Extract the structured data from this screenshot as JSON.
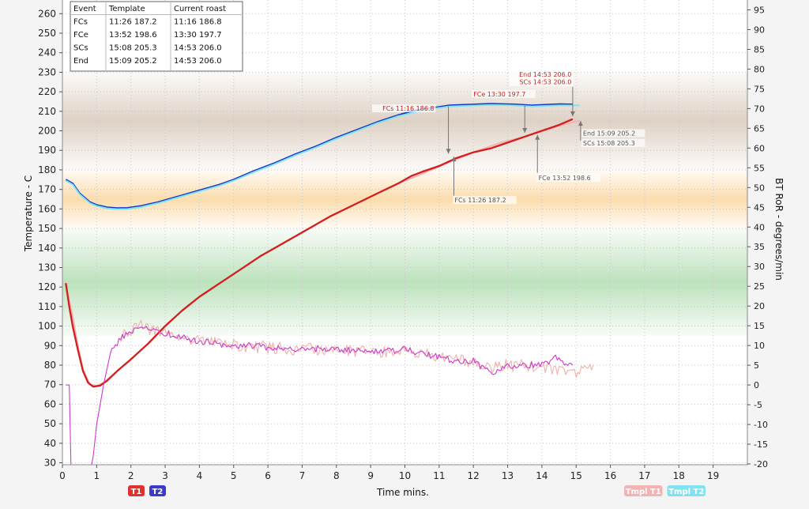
{
  "chart_data": {
    "type": "line",
    "xlabel": "Time mins.",
    "ylabel": "Temperature - C",
    "y2label": "BT RoR - degrees/min",
    "xlim": [
      0,
      20
    ],
    "ylim": [
      29,
      267
    ],
    "y2lim": [
      -20.2,
      97.5
    ],
    "x_ticks": [
      "0",
      "1",
      "2",
      "3",
      "4",
      "5",
      "6",
      "7",
      "8",
      "9",
      "10",
      "11",
      "12",
      "13",
      "14",
      "15",
      "16",
      "17",
      "18",
      "19"
    ],
    "y_ticks": [
      "30",
      "40",
      "50",
      "60",
      "70",
      "80",
      "90",
      "100",
      "110",
      "120",
      "130",
      "140",
      "150",
      "160",
      "170",
      "180",
      "190",
      "200",
      "210",
      "220",
      "230",
      "240",
      "250",
      "260"
    ],
    "y2_ticks": [
      "-20",
      "-15",
      "-10",
      "-5",
      "0",
      "5",
      "10",
      "15",
      "20",
      "25",
      "30",
      "35",
      "40",
      "45",
      "50",
      "55",
      "60",
      "65",
      "70",
      "75",
      "80",
      "85",
      "90",
      "95"
    ],
    "grid": true,
    "bands": [
      {
        "from": 95,
        "to": 150,
        "color": "#6bbd6b"
      },
      {
        "from": 150,
        "to": 180,
        "color": "#f6b24a"
      },
      {
        "from": 180,
        "to": 230,
        "color": "#b59a7e"
      }
    ],
    "legend_left": [
      {
        "label": "T1",
        "color": "#e03030"
      },
      {
        "label": "T2",
        "color": "#3a3acc"
      }
    ],
    "legend_right": [
      {
        "label": "Tmpl T1",
        "color": "#f4b3b3"
      },
      {
        "label": "Tmpl T2",
        "color": "#7fe3f2"
      }
    ],
    "series": [
      {
        "name": "T2",
        "axis": "left",
        "color": "#1432c8",
        "points": [
          [
            0.1,
            175
          ],
          [
            0.3,
            173
          ],
          [
            0.5,
            168
          ],
          [
            0.8,
            163.5
          ],
          [
            1.0,
            162
          ],
          [
            1.3,
            160.8
          ],
          [
            1.6,
            160.4
          ],
          [
            1.9,
            160.5
          ],
          [
            2.3,
            161.5
          ],
          [
            2.8,
            163.5
          ],
          [
            3.4,
            166.5
          ],
          [
            4.0,
            169.5
          ],
          [
            4.6,
            172.5
          ],
          [
            5.0,
            175
          ],
          [
            5.6,
            179.5
          ],
          [
            6.2,
            183.5
          ],
          [
            6.8,
            188
          ],
          [
            7.4,
            192
          ],
          [
            8.0,
            196.5
          ],
          [
            8.6,
            200.5
          ],
          [
            9.2,
            204.5
          ],
          [
            9.8,
            208
          ],
          [
            10.2,
            210
          ],
          [
            11.3,
            213
          ],
          [
            12.5,
            213.8
          ],
          [
            13.2,
            213.5
          ],
          [
            13.7,
            213
          ],
          [
            14.5,
            213.6
          ],
          [
            14.9,
            213.5
          ]
        ]
      },
      {
        "name": "Tmpl T2",
        "axis": "left",
        "color": "#7fe3f2",
        "points": [
          [
            0.1,
            174.5
          ],
          [
            0.3,
            172.5
          ],
          [
            0.5,
            167.5
          ],
          [
            0.8,
            163
          ],
          [
            1.0,
            161.5
          ],
          [
            1.3,
            160.3
          ],
          [
            1.6,
            159.9
          ],
          [
            1.9,
            160
          ],
          [
            2.3,
            161
          ],
          [
            2.8,
            163
          ],
          [
            3.4,
            166
          ],
          [
            4.0,
            169
          ],
          [
            4.6,
            172
          ],
          [
            5.0,
            174.5
          ],
          [
            5.6,
            179
          ],
          [
            6.2,
            183
          ],
          [
            6.8,
            187.5
          ],
          [
            7.4,
            191.5
          ],
          [
            8.0,
            196
          ],
          [
            8.6,
            200
          ],
          [
            9.2,
            204
          ],
          [
            9.8,
            207.5
          ],
          [
            10.5,
            210.5
          ],
          [
            11.3,
            212.5
          ],
          [
            12.5,
            213.3
          ],
          [
            13.2,
            213
          ],
          [
            13.7,
            212.5
          ],
          [
            14.5,
            213.1
          ],
          [
            15.1,
            213
          ]
        ]
      },
      {
        "name": "Tmpl T1",
        "axis": "left",
        "color": "#f4b3b3",
        "points": [
          [
            0.1,
            121
          ],
          [
            0.3,
            105
          ],
          [
            0.45,
            90
          ],
          [
            0.6,
            78
          ],
          [
            0.8,
            70
          ],
          [
            1.0,
            69.5
          ],
          [
            1.2,
            71
          ],
          [
            1.6,
            77
          ],
          [
            2.0,
            83
          ],
          [
            2.5,
            91
          ],
          [
            3.0,
            100
          ],
          [
            3.5,
            108
          ],
          [
            4.0,
            115
          ],
          [
            4.6,
            122
          ],
          [
            5.2,
            129
          ],
          [
            5.8,
            136
          ],
          [
            6.5,
            143
          ],
          [
            7.2,
            150
          ],
          [
            7.8,
            156
          ],
          [
            8.5,
            162
          ],
          [
            9.2,
            168
          ],
          [
            9.8,
            173
          ],
          [
            10.5,
            178
          ],
          [
            11.3,
            184
          ],
          [
            12.0,
            189
          ],
          [
            12.8,
            194
          ],
          [
            13.5,
            197
          ],
          [
            14.2,
            201
          ],
          [
            14.7,
            203.5
          ],
          [
            15.1,
            205.2
          ]
        ]
      },
      {
        "name": "T1",
        "axis": "left",
        "color": "#d41e1e",
        "points": [
          [
            0.1,
            122
          ],
          [
            0.2,
            110
          ],
          [
            0.3,
            100
          ],
          [
            0.45,
            88
          ],
          [
            0.6,
            77
          ],
          [
            0.75,
            71
          ],
          [
            0.9,
            69
          ],
          [
            1.1,
            69.5
          ],
          [
            1.3,
            72
          ],
          [
            1.6,
            77
          ],
          [
            2.0,
            83
          ],
          [
            2.5,
            91
          ],
          [
            3.0,
            100
          ],
          [
            3.5,
            108
          ],
          [
            4.0,
            115
          ],
          [
            4.6,
            122
          ],
          [
            5.2,
            129
          ],
          [
            5.8,
            136
          ],
          [
            6.5,
            143
          ],
          [
            7.2,
            150
          ],
          [
            7.8,
            156
          ],
          [
            8.5,
            162
          ],
          [
            9.2,
            168
          ],
          [
            9.8,
            173
          ],
          [
            10.2,
            177
          ],
          [
            10.5,
            179
          ],
          [
            11.0,
            182
          ],
          [
            11.5,
            186
          ],
          [
            12.0,
            189
          ],
          [
            12.5,
            191
          ],
          [
            13.0,
            194
          ],
          [
            13.5,
            197
          ],
          [
            14.0,
            200
          ],
          [
            14.5,
            203
          ],
          [
            14.9,
            206
          ]
        ]
      },
      {
        "name": "Tmpl BT RoR",
        "axis": "right",
        "color": "#f0b0a8",
        "noise": 1.6,
        "points": [
          [
            1.7,
            12
          ],
          [
            2.3,
            15
          ],
          [
            3.0,
            13
          ],
          [
            4.0,
            11
          ],
          [
            5.0,
            10
          ],
          [
            6.0,
            9.5
          ],
          [
            7.0,
            9
          ],
          [
            8.0,
            8.8
          ],
          [
            9.0,
            8.5
          ],
          [
            10.0,
            8.5
          ],
          [
            11.0,
            7
          ],
          [
            12.0,
            6
          ],
          [
            12.5,
            4.5
          ],
          [
            13.0,
            5
          ],
          [
            14.0,
            4.8
          ],
          [
            14.5,
            4
          ],
          [
            15.0,
            3.5
          ],
          [
            15.5,
            5
          ]
        ]
      },
      {
        "name": "BT RoR",
        "axis": "right",
        "color": "#cc3acc",
        "noise": 0.8,
        "points": [
          [
            0.1,
            0
          ],
          [
            0.2,
            0
          ],
          [
            0.25,
            -20.5
          ],
          [
            0.85,
            -20.5
          ],
          [
            0.9,
            -18
          ],
          [
            1.0,
            -10
          ],
          [
            1.2,
            0
          ],
          [
            1.4,
            8
          ],
          [
            1.7,
            12
          ],
          [
            2.0,
            13.5
          ],
          [
            2.3,
            14.5
          ],
          [
            2.6,
            14
          ],
          [
            3.0,
            13
          ],
          [
            3.5,
            12
          ],
          [
            4.0,
            11
          ],
          [
            4.5,
            10.5
          ],
          [
            5.0,
            10
          ],
          [
            5.5,
            10
          ],
          [
            6.0,
            9.5
          ],
          [
            7.0,
            9
          ],
          [
            7.5,
            9.2
          ],
          [
            8.0,
            9
          ],
          [
            8.5,
            8.8
          ],
          [
            9.0,
            8.5
          ],
          [
            9.5,
            8.5
          ],
          [
            10.0,
            9
          ],
          [
            10.5,
            8
          ],
          [
            11.0,
            7
          ],
          [
            11.5,
            6
          ],
          [
            12.0,
            6
          ],
          [
            12.2,
            4.5
          ],
          [
            12.6,
            3
          ],
          [
            12.9,
            4.5
          ],
          [
            13.3,
            5
          ],
          [
            13.6,
            5
          ],
          [
            14.0,
            5.2
          ],
          [
            14.2,
            6
          ],
          [
            14.4,
            7
          ],
          [
            14.6,
            5.5
          ],
          [
            14.9,
            5
          ]
        ]
      }
    ],
    "annotations": [
      {
        "text": "FCs 11:16 186.8",
        "x": 10.9,
        "y": 210.3,
        "color": "#c82020",
        "anchor": "end"
      },
      {
        "text": "FCe 13:30 197.7",
        "x": 12.0,
        "y": 217.7,
        "color": "#c82020",
        "anchor": "start"
      },
      {
        "text": "End 14:53 206.0",
        "x": 14.91,
        "y": 227.8,
        "color": "#c82020",
        "anchor": "end"
      },
      {
        "text": "SCs 14:53 206.0",
        "x": 14.91,
        "y": 223.8,
        "color": "#c82020",
        "anchor": "end"
      },
      {
        "text": "FCs 11:26 187.2",
        "x": 11.45,
        "y": 163.3,
        "color": "#555555",
        "anchor": "start"
      },
      {
        "text": "FCe 13:52 198.6",
        "x": 13.9,
        "y": 174.8,
        "color": "#555555",
        "anchor": "start"
      },
      {
        "text": "End 15:09 205.2",
        "x": 15.2,
        "y": 197.6,
        "color": "#555555",
        "anchor": "start"
      },
      {
        "text": "SCs 15:08 205.3",
        "x": 15.2,
        "y": 192.6,
        "color": "#555555",
        "anchor": "start"
      }
    ],
    "arrows": [
      {
        "x": 11.27,
        "from": 212.5,
        "to": 188.3,
        "color": "#777777"
      },
      {
        "x": 13.5,
        "from": 213.5,
        "to": 199,
        "color": "#777777"
      },
      {
        "x": 14.9,
        "from": 222.5,
        "to": 207.5,
        "color": "#777777"
      },
      {
        "x": 11.43,
        "from": 166.8,
        "to": 186.8,
        "color": "#777777"
      },
      {
        "x": 13.87,
        "from": 178.5,
        "to": 197.9,
        "color": "#777777"
      },
      {
        "x": 15.13,
        "from": 195,
        "to": 205,
        "color": "#777777"
      }
    ],
    "events_table": {
      "headers": [
        "Event",
        "Template",
        "Current roast"
      ],
      "rows": [
        [
          "FCs",
          "11:26 187.2",
          "11:16 186.8"
        ],
        [
          "FCe",
          "13:52 198.6",
          "13:30 197.7"
        ],
        [
          "SCs",
          "15:08 205.3",
          "14:53 206.0"
        ],
        [
          "End",
          "15:09 205.2",
          "14:53 206.0"
        ]
      ]
    }
  }
}
